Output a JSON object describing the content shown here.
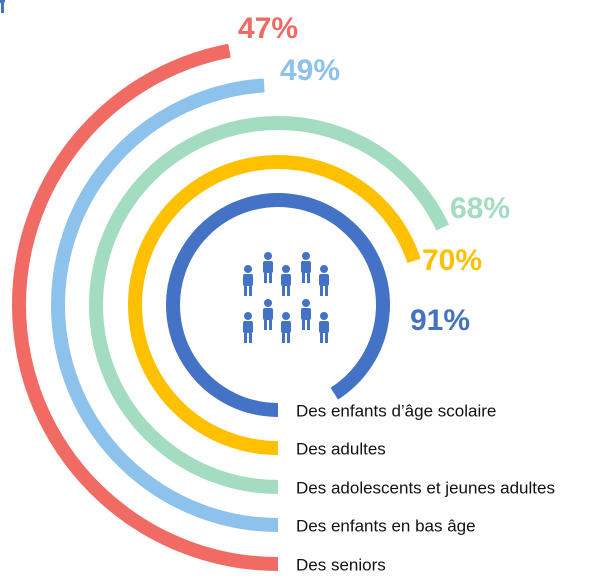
{
  "chart_data": {
    "type": "radial_bar",
    "categories": [
      "Des enfants d’âge scolaire",
      "Des adultes",
      "Des adolescents et jeunes adultes",
      "Des enfants en bas âge",
      "Des seniors"
    ],
    "values": [
      91,
      70,
      68,
      49,
      47
    ],
    "value_labels": [
      "91%",
      "70%",
      "68%",
      "49%",
      "47%"
    ],
    "colors": [
      "#4472c4",
      "#ffc000",
      "#a3dcc0",
      "#8cc2ec",
      "#ef6b63"
    ]
  }
}
